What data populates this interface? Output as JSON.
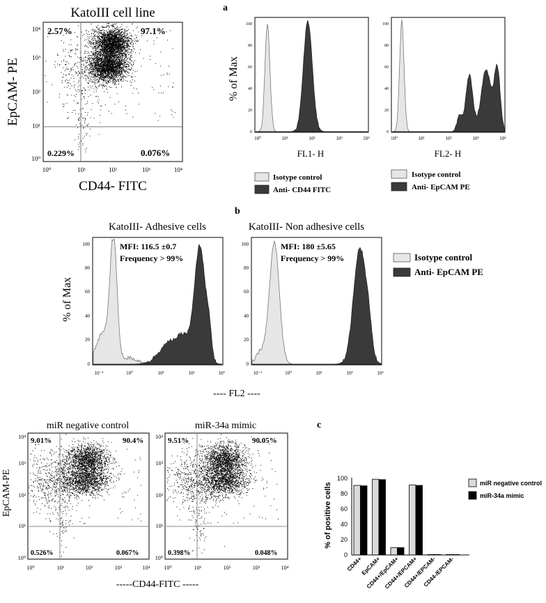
{
  "panel_labels": {
    "a": "a",
    "b": "b",
    "c": "c"
  },
  "panel_a": {
    "dot_plot": {
      "title": "KatoIII cell line",
      "ylabel": "EpCAM- PE",
      "xlabel": "CD44- FITC",
      "ticks": [
        "10⁰",
        "10¹",
        "10²",
        "10³",
        "10⁴"
      ],
      "quadrants": {
        "ul": "2.57%",
        "ur": "97.1%",
        "ll": "0.229%",
        "lr": "0.076%"
      }
    },
    "hist_ylabel": "% of Max",
    "hist_yticks": [
      "0",
      "20",
      "40",
      "60",
      "80",
      "100"
    ],
    "hist_xticks": [
      "10⁰",
      "10¹",
      "10²",
      "10³",
      "10⁴"
    ],
    "fl1": {
      "xlabel": "FL1- H",
      "legend": [
        {
          "label": "Isotype control",
          "color": "#e6e6e6"
        },
        {
          "label": "Anti- CD44 FITC",
          "color": "#3a3a3a"
        }
      ]
    },
    "fl2": {
      "xlabel": "FL2- H",
      "legend": [
        {
          "label": "Isotype control",
          "color": "#e6e6e6"
        },
        {
          "label": "Anti- EpCAM PE",
          "color": "#3a3a3a"
        }
      ]
    }
  },
  "panel_b": {
    "titles": [
      "KatoIII- Adhesive cells",
      "KatoIII- Non adhesive cells"
    ],
    "annotations": [
      {
        "mfi": "MFI: 116.5 ±0.7",
        "freq": "Frequency > 99%"
      },
      {
        "mfi": "MFI: 180 ±5.65",
        "freq": "Frequency > 99%"
      }
    ],
    "ylabel": "% of Max",
    "xlabel": "---- FL2 ----",
    "yticks": [
      "0",
      "20",
      "40",
      "60",
      "80",
      "100"
    ],
    "xticks": [
      "10⁻¹",
      "10⁰",
      "10¹",
      "10²",
      "10³"
    ],
    "legend": [
      {
        "label": "Isotype control",
        "color": "#e6e6e6"
      },
      {
        "label": "Anti- EpCAM PE",
        "color": "#3a3a3a"
      }
    ]
  },
  "panel_c_dots": {
    "titles": [
      "miR negative control",
      "miR-34a mimic"
    ],
    "ylabel": "EpCAM-PE",
    "xlabel": "-----CD44-FITC -----",
    "ticks": [
      "10⁰",
      "10¹",
      "10²",
      "10³",
      "10⁴"
    ],
    "quadrants": [
      {
        "ul": "9.01%",
        "ur": "90.4%",
        "ll": "0.526%",
        "lr": "0.067%"
      },
      {
        "ul": "9.51%",
        "ur": "90.05%",
        "ll": "0.398%",
        "lr": "0.048%"
      }
    ]
  },
  "chart_data": {
    "type": "bar",
    "title": "",
    "xlabel": "",
    "ylabel": "% of positive cells",
    "ylim": [
      0,
      100
    ],
    "yticks": [
      "0",
      "20",
      "40",
      "60",
      "80",
      "100"
    ],
    "categories": [
      "CD44+",
      "EpCAM+",
      "CD44+/EpCAM+",
      "CD44+/EPCAM+",
      "CD44+/EPCAM-",
      "CD44-/EPCAM-"
    ],
    "series": [
      {
        "name": "miR negative control",
        "color": "#d9d9d9",
        "values": [
          90,
          98,
          9.5,
          90.5,
          0.07,
          0.5
        ]
      },
      {
        "name": "miR-34a mimic",
        "color": "#000000",
        "values": [
          89.5,
          97.5,
          9.5,
          90,
          0.05,
          0.4
        ]
      }
    ],
    "legend_position": "right"
  }
}
